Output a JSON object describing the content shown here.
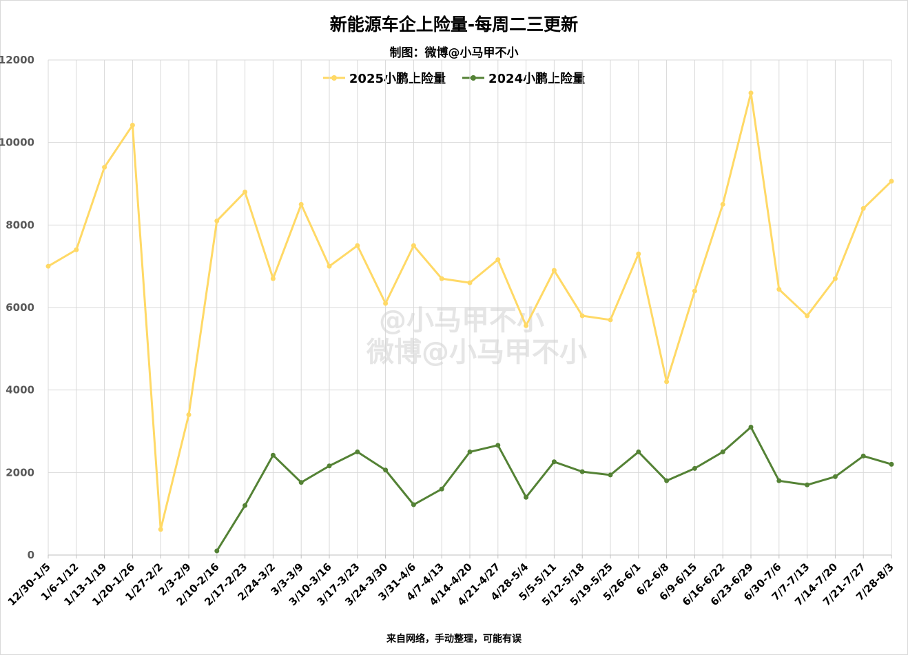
{
  "title": "新能源车企上险量-每周二三更新",
  "subtitle": "制图：微博@小马甲不小",
  "footer": "来自网络，手动整理，可能有误",
  "watermark": {
    "line1": "@小马甲不小",
    "line2": "微博@小马甲不小"
  },
  "chart_data": {
    "type": "line",
    "title": "新能源车企上险量-每周二三更新",
    "categories": [
      "12/30-1/5",
      "1/6-1/12",
      "1/13-1/19",
      "1/20-1/26",
      "1/27-2/2",
      "2/3-2/9",
      "2/10-2/16",
      "2/17-2/23",
      "2/24-3/2",
      "3/3-3/9",
      "3/10-3/16",
      "3/17-3/23",
      "3/24-3/30",
      "3/31-4/6",
      "4/7-4/13",
      "4/14-4/20",
      "4/21-4/27",
      "4/28-5/4",
      "5/5-5/11",
      "5/12-5/18",
      "5/19-5/25",
      "5/26-6/1",
      "6/2-6/8",
      "6/9-6/15",
      "6/16-6/22",
      "6/23-6/29",
      "6/30-7/6",
      "7/7-7/13",
      "7/14-7/20",
      "7/21-7/27",
      "7/28-8/3"
    ],
    "series": [
      {
        "name": "2025小鹏上险量",
        "color": "#FFD966",
        "values": [
          7000,
          7400,
          9400,
          10420,
          620,
          3400,
          8100,
          8800,
          6700,
          8500,
          7000,
          7500,
          6100,
          7500,
          6700,
          6600,
          7160,
          5560,
          6900,
          5800,
          5700,
          7300,
          4200,
          6400,
          8500,
          11200,
          6440,
          5800,
          6700,
          8400,
          9060
        ]
      },
      {
        "name": "2024小鹏上险量",
        "color": "#548235",
        "values": [
          null,
          null,
          null,
          null,
          null,
          null,
          100,
          1200,
          2420,
          1760,
          2160,
          2500,
          2060,
          1220,
          1600,
          2500,
          2660,
          1400,
          2260,
          2020,
          1940,
          2500,
          1800,
          2100,
          2500,
          3100,
          1800,
          1700,
          1900,
          2400,
          2200
        ]
      }
    ],
    "ylim": [
      0,
      12000
    ],
    "yticks": [
      0,
      2000,
      4000,
      6000,
      8000,
      10000,
      12000
    ],
    "grid": true,
    "legend_position": "top"
  }
}
